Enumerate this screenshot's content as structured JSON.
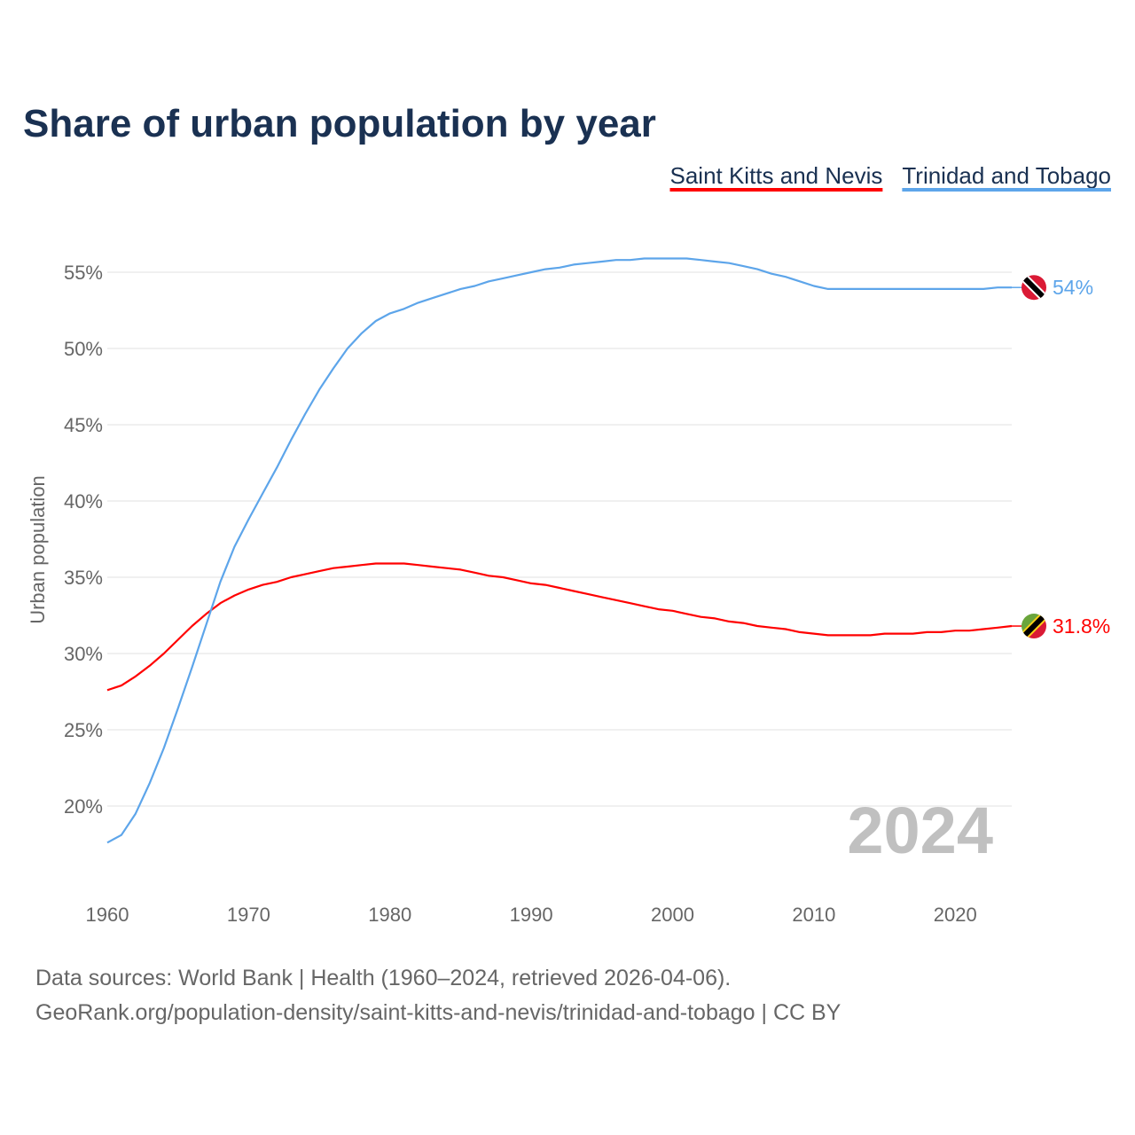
{
  "chart_data": {
    "type": "line",
    "title": "Share of urban population by year",
    "ylabel": "Urban population",
    "xlabel": "",
    "xlim": [
      1960,
      2024
    ],
    "ylim": [
      15,
      57
    ],
    "x_ticks": [
      "1960",
      "1970",
      "1980",
      "1990",
      "2000",
      "2010",
      "2020"
    ],
    "y_ticks": [
      {
        "value": 20,
        "label": "20%"
      },
      {
        "value": 25,
        "label": "25%"
      },
      {
        "value": 30,
        "label": "30%"
      },
      {
        "value": 35,
        "label": "35%"
      },
      {
        "value": 40,
        "label": "40%"
      },
      {
        "value": 45,
        "label": "45%"
      },
      {
        "value": 50,
        "label": "50%"
      },
      {
        "value": 55,
        "label": "55%"
      }
    ],
    "grid": true,
    "legend_position": "top-right",
    "year_watermark": "2024",
    "x": [
      1960,
      1961,
      1962,
      1963,
      1964,
      1965,
      1966,
      1967,
      1968,
      1969,
      1970,
      1971,
      1972,
      1973,
      1974,
      1975,
      1976,
      1977,
      1978,
      1979,
      1980,
      1981,
      1982,
      1983,
      1984,
      1985,
      1986,
      1987,
      1988,
      1989,
      1990,
      1991,
      1992,
      1993,
      1994,
      1995,
      1996,
      1997,
      1998,
      1999,
      2000,
      2001,
      2002,
      2003,
      2004,
      2005,
      2006,
      2007,
      2008,
      2009,
      2010,
      2011,
      2012,
      2013,
      2014,
      2015,
      2016,
      2017,
      2018,
      2019,
      2020,
      2021,
      2022,
      2023,
      2024
    ],
    "series": [
      {
        "name": "Saint Kitts and Nevis",
        "color": "#ff0000",
        "end_label": "31.8%",
        "flag": "saint-kitts-and-nevis-flag",
        "values": [
          27.6,
          27.9,
          28.5,
          29.2,
          30.0,
          30.9,
          31.8,
          32.6,
          33.3,
          33.8,
          34.2,
          34.5,
          34.7,
          35.0,
          35.2,
          35.4,
          35.6,
          35.7,
          35.8,
          35.9,
          35.9,
          35.9,
          35.8,
          35.7,
          35.6,
          35.5,
          35.3,
          35.1,
          35.0,
          34.8,
          34.6,
          34.5,
          34.3,
          34.1,
          33.9,
          33.7,
          33.5,
          33.3,
          33.1,
          32.9,
          32.8,
          32.6,
          32.4,
          32.3,
          32.1,
          32.0,
          31.8,
          31.7,
          31.6,
          31.4,
          31.3,
          31.2,
          31.2,
          31.2,
          31.2,
          31.3,
          31.3,
          31.3,
          31.4,
          31.4,
          31.5,
          31.5,
          31.6,
          31.7,
          31.8
        ]
      },
      {
        "name": "Trinidad and Tobago",
        "color": "#5da5ea",
        "end_label": "54%",
        "flag": "trinidad-and-tobago-flag",
        "values": [
          17.6,
          18.1,
          19.5,
          21.5,
          23.8,
          26.4,
          29.1,
          31.9,
          34.7,
          37.0,
          38.8,
          40.5,
          42.2,
          44.0,
          45.7,
          47.3,
          48.7,
          50.0,
          51.0,
          51.8,
          52.3,
          52.6,
          53.0,
          53.3,
          53.6,
          53.9,
          54.1,
          54.4,
          54.6,
          54.8,
          55.0,
          55.2,
          55.3,
          55.5,
          55.6,
          55.7,
          55.8,
          55.8,
          55.9,
          55.9,
          55.9,
          55.9,
          55.8,
          55.7,
          55.6,
          55.4,
          55.2,
          54.9,
          54.7,
          54.4,
          54.1,
          53.9,
          53.9,
          53.9,
          53.9,
          53.9,
          53.9,
          53.9,
          53.9,
          53.9,
          53.9,
          53.9,
          53.9,
          54.0,
          54.0
        ]
      }
    ]
  },
  "footer": {
    "sources": "Data sources: World Bank | Health (1960–2024, retrieved 2026-04-06).",
    "credit": "GeoRank.org/population-density/saint-kitts-and-nevis/trinidad-and-tobago | CC BY"
  }
}
